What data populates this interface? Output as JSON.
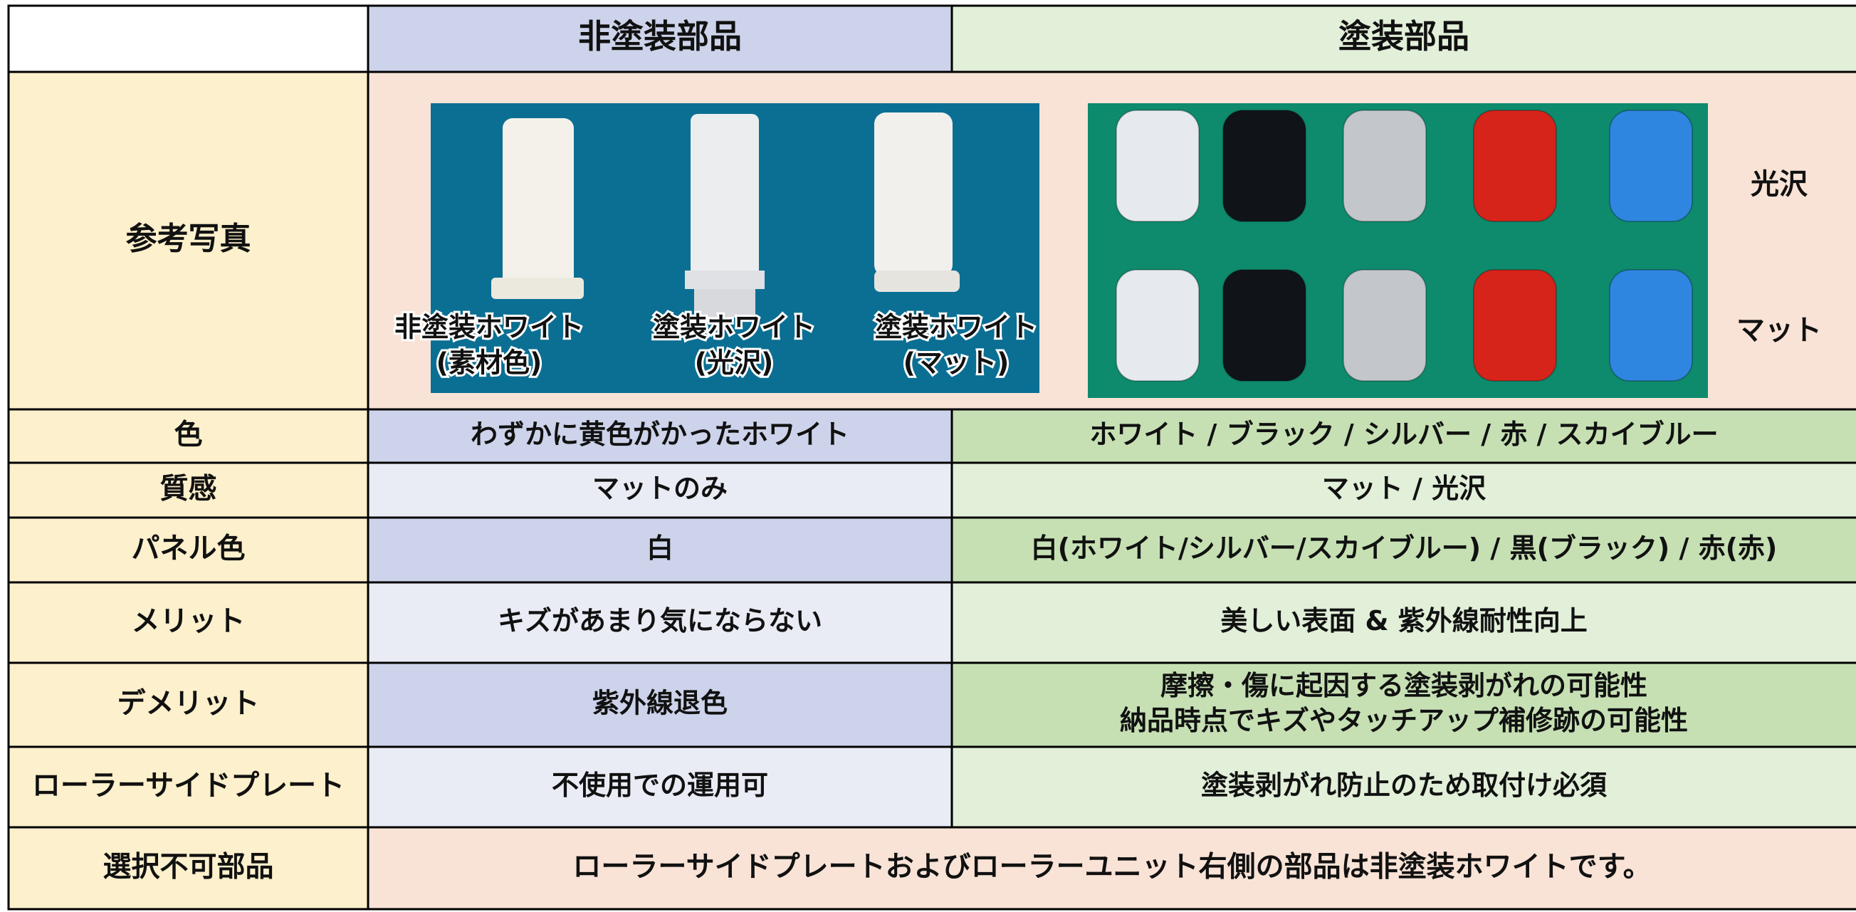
{
  "header": {
    "columns": [
      "非塗装部品",
      "塗装部品"
    ]
  },
  "photo_row": {
    "label": "参考写真",
    "unpainted_captions": [
      [
        "非塗装ホワイト",
        "(素材色)"
      ],
      [
        "塗装ホワイト",
        "(光沢)"
      ],
      [
        "塗装ホワイト",
        "(マット)"
      ]
    ],
    "finish_labels": [
      "光沢",
      "マット"
    ]
  },
  "rows": [
    {
      "label": "色",
      "unpainted": [
        "わずかに黄色がかったホワイト"
      ],
      "painted": [
        "ホワイト / ブラック / シルバー / 赤 / スカイブルー"
      ]
    },
    {
      "label": "質感",
      "unpainted": [
        "マットのみ"
      ],
      "painted": [
        "マット / 光沢"
      ]
    },
    {
      "label": "パネル色",
      "unpainted": [
        "白"
      ],
      "painted": [
        "白(ホワイト/シルバー/スカイブルー) / 黒(ブラック) / 赤(赤)"
      ]
    },
    {
      "label": "メリット",
      "unpainted": [
        "キズがあまり気にならない"
      ],
      "painted": [
        "美しい表面 & 紫外線耐性向上"
      ]
    },
    {
      "label": "デメリット",
      "unpainted": [
        "紫外線退色"
      ],
      "painted": [
        "摩擦・傷に起因する塗装剥がれの可能性",
        "納品時点でキズやタッチアップ補修跡の可能性"
      ]
    },
    {
      "label": "ローラーサイドプレート",
      "unpainted": [
        "不使用での運用可"
      ],
      "painted": [
        "塗装剥がれ防止のため取付け必須"
      ]
    }
  ],
  "footer": {
    "label": "選択不可部品",
    "text": "ローラーサイドプレートおよびローラーユニット右側の部品は非塗装ホワイトです。"
  }
}
